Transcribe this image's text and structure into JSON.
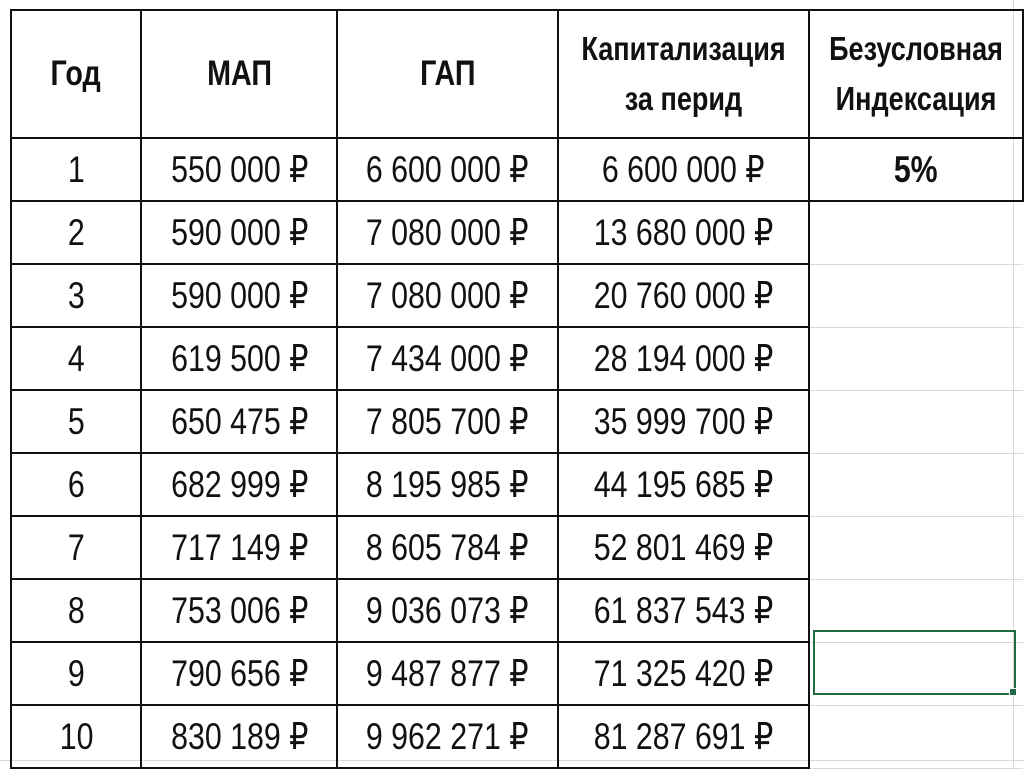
{
  "headers": {
    "year": "Год",
    "map": "МАП",
    "gap": "ГАП",
    "cap_line1": "Капитализация",
    "cap_line2": "за перид",
    "index_line1": "Безусловная",
    "index_line2": "Индексация"
  },
  "indexation_value": "5%",
  "rows": [
    {
      "year": "1",
      "map": "550 000 ₽",
      "gap": "6 600 000 ₽",
      "cap": "6 600 000 ₽"
    },
    {
      "year": "2",
      "map": "590 000 ₽",
      "gap": "7 080 000 ₽",
      "cap": "13 680 000 ₽"
    },
    {
      "year": "3",
      "map": "590 000 ₽",
      "gap": "7 080 000 ₽",
      "cap": "20 760 000 ₽"
    },
    {
      "year": "4",
      "map": "619 500 ₽",
      "gap": "7 434 000 ₽",
      "cap": "28 194 000 ₽"
    },
    {
      "year": "5",
      "map": "650 475 ₽",
      "gap": "7 805 700 ₽",
      "cap": "35 999 700 ₽"
    },
    {
      "year": "6",
      "map": "682 999 ₽",
      "gap": "8 195 985 ₽",
      "cap": "44 195 685 ₽"
    },
    {
      "year": "7",
      "map": "717 149 ₽",
      "gap": "8 605 784 ₽",
      "cap": "52 801 469 ₽"
    },
    {
      "year": "8",
      "map": "753 006 ₽",
      "gap": "9 036 073 ₽",
      "cap": "61 837 543 ₽"
    },
    {
      "year": "9",
      "map": "790 656 ₽",
      "gap": "9 487 877 ₽",
      "cap": "71 325 420 ₽"
    },
    {
      "year": "10",
      "map": "830 189 ₽",
      "gap": "9 962 271 ₽",
      "cap": "81 287 691 ₽"
    }
  ],
  "colors": {
    "selection": "#1e6b45",
    "gridline": "#d9d9d9"
  }
}
